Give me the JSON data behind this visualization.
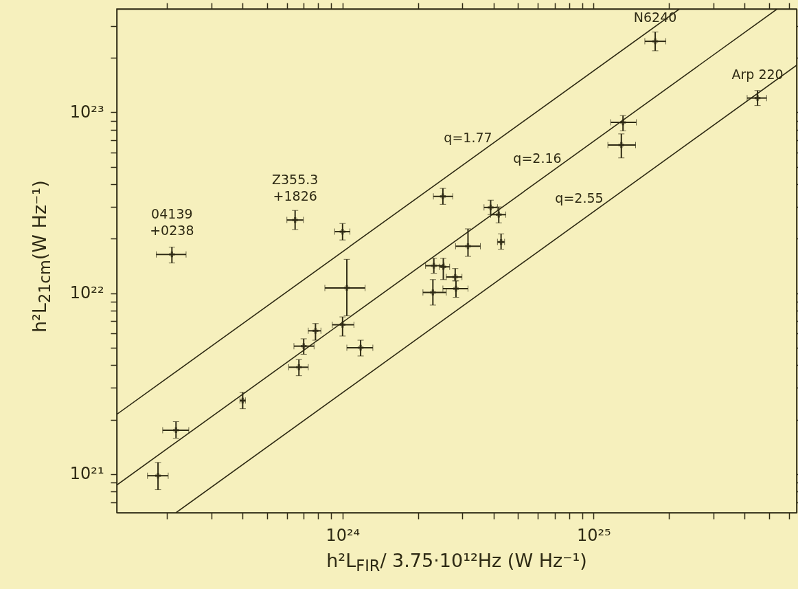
{
  "chart_data": {
    "type": "scatter",
    "xlabel": "h²L$_{FIR}$/ 3.75·10¹²Hz (W Hz⁻¹)",
    "ylabel": "h²L$_{21cm}$(W Hz⁻¹)",
    "log": "xy",
    "xlim": [
      1.26e+23,
      6.44e+25
    ],
    "ylim": [
      6.12e+20,
      3.73e+23
    ],
    "xticks": [
      {
        "value": 2e+23,
        "label": null
      },
      {
        "value": 3e+23,
        "label": null
      },
      {
        "value": 4e+23,
        "label": null
      },
      {
        "value": 5e+23,
        "label": null
      },
      {
        "value": 6e+23,
        "label": null
      },
      {
        "value": 7e+23,
        "label": null
      },
      {
        "value": 8e+23,
        "label": null
      },
      {
        "value": 9e+23,
        "label": null
      },
      {
        "value": 1e+24,
        "label": "10²⁴"
      },
      {
        "value": 2e+24,
        "label": null
      },
      {
        "value": 3e+24,
        "label": null
      },
      {
        "value": 4e+24,
        "label": null
      },
      {
        "value": 5e+24,
        "label": null
      },
      {
        "value": 6e+24,
        "label": null
      },
      {
        "value": 7e+24,
        "label": null
      },
      {
        "value": 8e+24,
        "label": null
      },
      {
        "value": 9e+24,
        "label": null
      },
      {
        "value": 1e+25,
        "label": "10²⁵"
      },
      {
        "value": 2e+25,
        "label": null
      },
      {
        "value": 3e+25,
        "label": null
      },
      {
        "value": 4e+25,
        "label": null
      },
      {
        "value": 5e+25,
        "label": null
      },
      {
        "value": 6e+25,
        "label": null
      }
    ],
    "yticks": [
      {
        "value": 7e+20,
        "label": null
      },
      {
        "value": 8e+20,
        "label": null
      },
      {
        "value": 9e+20,
        "label": null
      },
      {
        "value": 1e+21,
        "label": "10²¹"
      },
      {
        "value": 2e+21,
        "label": null
      },
      {
        "value": 3e+21,
        "label": null
      },
      {
        "value": 4e+21,
        "label": null
      },
      {
        "value": 5e+21,
        "label": null
      },
      {
        "value": 6e+21,
        "label": null
      },
      {
        "value": 7e+21,
        "label": null
      },
      {
        "value": 8e+21,
        "label": null
      },
      {
        "value": 9e+21,
        "label": null
      },
      {
        "value": 1e+22,
        "label": "10²²"
      },
      {
        "value": 2e+22,
        "label": null
      },
      {
        "value": 3e+22,
        "label": null
      },
      {
        "value": 4e+22,
        "label": null
      },
      {
        "value": 5e+22,
        "label": null
      },
      {
        "value": 6e+22,
        "label": null
      },
      {
        "value": 7e+22,
        "label": null
      },
      {
        "value": 8e+22,
        "label": null
      },
      {
        "value": 9e+22,
        "label": null
      },
      {
        "value": 1e+23,
        "label": "10²³"
      },
      {
        "value": 2e+23,
        "label": null
      },
      {
        "value": 3e+23,
        "label": null
      }
    ],
    "series": [
      {
        "color": "#2e2a14",
        "marker": "cross",
        "x": [
          2.09e+23,
          6.47e+23,
          1e+24,
          1.04e+24,
          1e+24,
          7.8e+23,
          7e+23,
          1.18e+24,
          6.7e+23,
          4e+23,
          2.17e+23,
          1.84e+23,
          1.76e+25,
          4.5e+25,
          1.31e+25,
          1.29e+25,
          2.51e+24,
          3.89e+24,
          4.19e+24,
          4.28e+24,
          3.16e+24,
          2.31e+24,
          2.52e+24,
          2.81e+24,
          2.29e+24,
          2.83e+24
        ],
        "values": [
          1.64e+22,
          2.54e+22,
          2.19e+22,
          1.07e+22,
          6.7e+21,
          6.2e+21,
          5.1e+21,
          5e+21,
          3.9e+21,
          2.55e+21,
          1.75e+21,
          9.8e+20,
          2.47e+23,
          1.2e+23,
          8.8e+22,
          6.6e+22,
          3.43e+22,
          2.98e+22,
          2.72e+22,
          1.92e+22,
          1.82e+22,
          1.42e+22,
          1.4e+22,
          1.23e+22,
          1.01e+22,
          1.06e+22
        ],
        "errors": [
          [
            1.47e+22,
            1.8e+22
          ],
          [
            2.25e+22,
            2.87e+22
          ],
          [
            1.97e+22,
            2.43e+22
          ],
          [
            7.5e+21,
            1.54e+22
          ],
          [
            5.8e+21,
            7.4e+21
          ],
          [
            5.5e+21,
            6.8e+21
          ],
          [
            4.6e+21,
            5.6e+21
          ],
          [
            4.5e+21,
            5.5e+21
          ],
          [
            3.5e+21,
            4.3e+21
          ],
          [
            2.3e+21,
            2.83e+21
          ],
          [
            1.58e+21,
            1.95e+21
          ],
          [
            8.2e+20,
            1.16e+21
          ],
          [
            2.19e+23,
            2.78e+23
          ],
          [
            1.09e+23,
            1.32e+23
          ],
          [
            7.9e+22,
            9.6e+22
          ],
          [
            5.6e+22,
            7.6e+22
          ],
          [
            3.1e+22,
            3.8e+22
          ],
          [
            2.72e+22,
            3.27e+22
          ],
          [
            2.45e+22,
            3e+22
          ],
          [
            1.75e+22,
            2.13e+22
          ],
          [
            1.6e+22,
            2.27e+22
          ],
          [
            1.29e+22,
            1.56e+22
          ],
          [
            1.19e+22,
            1.56e+22
          ],
          [
            1.17e+22,
            1.37e+22
          ],
          [
            8.6e+21,
            1.19e+22
          ],
          [
            9.5e+21,
            1.17e+22
          ]
        ],
        "xerrors": [
          [
            1.81e+23,
            2.38e+23
          ],
          [
            6e+23,
            6.98e+23
          ],
          [
            9.3e+23,
            1.07e+24
          ],
          [
            8.5e+23,
            1.23e+24
          ],
          [
            9.1e+23,
            1.11e+24
          ],
          [
            7.3e+23,
            8.2e+23
          ],
          [
            6.4e+23,
            7.7e+23
          ],
          [
            1.04e+24,
            1.32e+24
          ],
          [
            6.1e+23,
            7.3e+23
          ],
          [
            3.9e+23,
            4.1e+23
          ],
          [
            1.92e+23,
            2.44e+23
          ],
          [
            1.67e+23,
            2.02e+23
          ],
          [
            1.6e+25,
            1.94e+25
          ],
          [
            4.09e+25,
            4.89e+25
          ],
          [
            1.17e+25,
            1.48e+25
          ],
          [
            1.14e+25,
            1.47e+25
          ],
          [
            2.3e+24,
            2.75e+24
          ],
          [
            3.66e+24,
            4.14e+24
          ],
          [
            3.89e+24,
            4.47e+24
          ],
          [
            4.14e+24,
            4.42e+24
          ],
          [
            2.82e+24,
            3.54e+24
          ],
          [
            2.14e+24,
            2.54e+24
          ],
          [
            2.43e+24,
            2.67e+24
          ],
          [
            2.59e+24,
            2.99e+24
          ],
          [
            2.09e+24,
            2.59e+24
          ],
          [
            2.51e+24,
            3.16e+24
          ]
        ]
      },
      {
        "type": "line",
        "color": "#2e2a14",
        "x": [
          1.26e+23,
          2.2e+25
        ],
        "values": [
          2.14e+21,
          3.73e+23
        ]
      },
      {
        "type": "line",
        "color": "#2e2a14",
        "x": [
          1.26e+23,
          5.39e+25
        ],
        "values": [
          8.7e+20,
          3.73e+23
        ]
      },
      {
        "type": "line",
        "color": "#2e2a14",
        "x": [
          2.17e+23,
          6.44e+25
        ],
        "values": [
          6.12e+20,
          1.82e+23
        ]
      }
    ],
    "annotations": [
      {
        "text": "04139\n+0238",
        "x": 2.09e+23,
        "y": 1.64e+22
      },
      {
        "text": "Z355.3\n+1826",
        "x": 6.47e+23,
        "y": 2.54e+22
      },
      {
        "text": "N6240",
        "x": 1.76e+25,
        "y": 2.47e+23
      },
      {
        "text": "Arp 220",
        "x": 4.5e+25,
        "y": 1.2e+23
      },
      {
        "text": "q=1.77",
        "x": 3.16e+24,
        "y": 5.37e+22
      },
      {
        "text": "q=2.16",
        "x": 5.97e+24,
        "y": 4.13e+22
      },
      {
        "text": "q=2.55",
        "x": 8.77e+24,
        "y": 2.47e+22
      }
    ]
  }
}
